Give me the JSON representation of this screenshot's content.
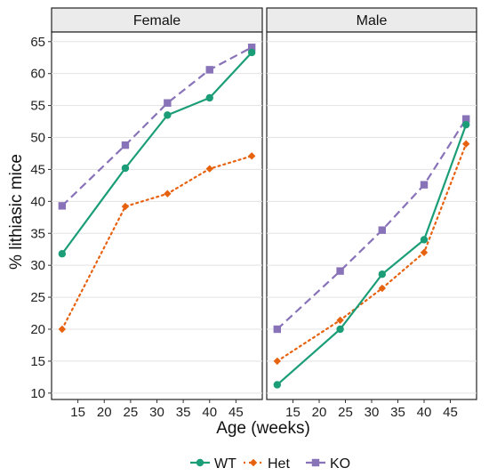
{
  "chart_data": {
    "type": "line",
    "xlabel": "Age (weeks)",
    "ylabel": "% lithiasic mice",
    "xlim": [
      10,
      50
    ],
    "ylim": [
      9,
      66.5
    ],
    "xticks": [
      15,
      20,
      25,
      30,
      35,
      40,
      45
    ],
    "yticks": [
      10,
      15,
      20,
      25,
      30,
      35,
      40,
      45,
      50,
      55,
      60,
      65
    ],
    "x": [
      12,
      24,
      32,
      40,
      48
    ],
    "legend_position": "bottom",
    "grid": true,
    "panels": [
      {
        "title": "Female",
        "series": [
          {
            "name": "WT",
            "values": [
              31.8,
              45.2,
              53.5,
              56.2,
              63.3
            ]
          },
          {
            "name": "Het",
            "values": [
              20.0,
              39.2,
              41.2,
              45.1,
              47.1
            ]
          },
          {
            "name": "KO",
            "values": [
              39.3,
              48.8,
              55.4,
              60.6,
              64.1
            ]
          }
        ]
      },
      {
        "title": "Male",
        "series": [
          {
            "name": "WT",
            "values": [
              11.3,
              20.0,
              28.6,
              34.0,
              52.0
            ]
          },
          {
            "name": "Het",
            "values": [
              15.0,
              21.4,
              26.4,
              32.0,
              49.0
            ]
          },
          {
            "name": "KO",
            "values": [
              20.0,
              29.1,
              35.5,
              42.6,
              52.9
            ]
          }
        ]
      }
    ]
  },
  "series_styles": {
    "WT": {
      "color": "#1b9e77",
      "dash": "solid",
      "marker": "circle"
    },
    "Het": {
      "color": "#e7620f",
      "dash": "dotted",
      "marker": "diamond"
    },
    "KO": {
      "color": "#8872b8",
      "dash": "dashed",
      "marker": "square"
    }
  }
}
